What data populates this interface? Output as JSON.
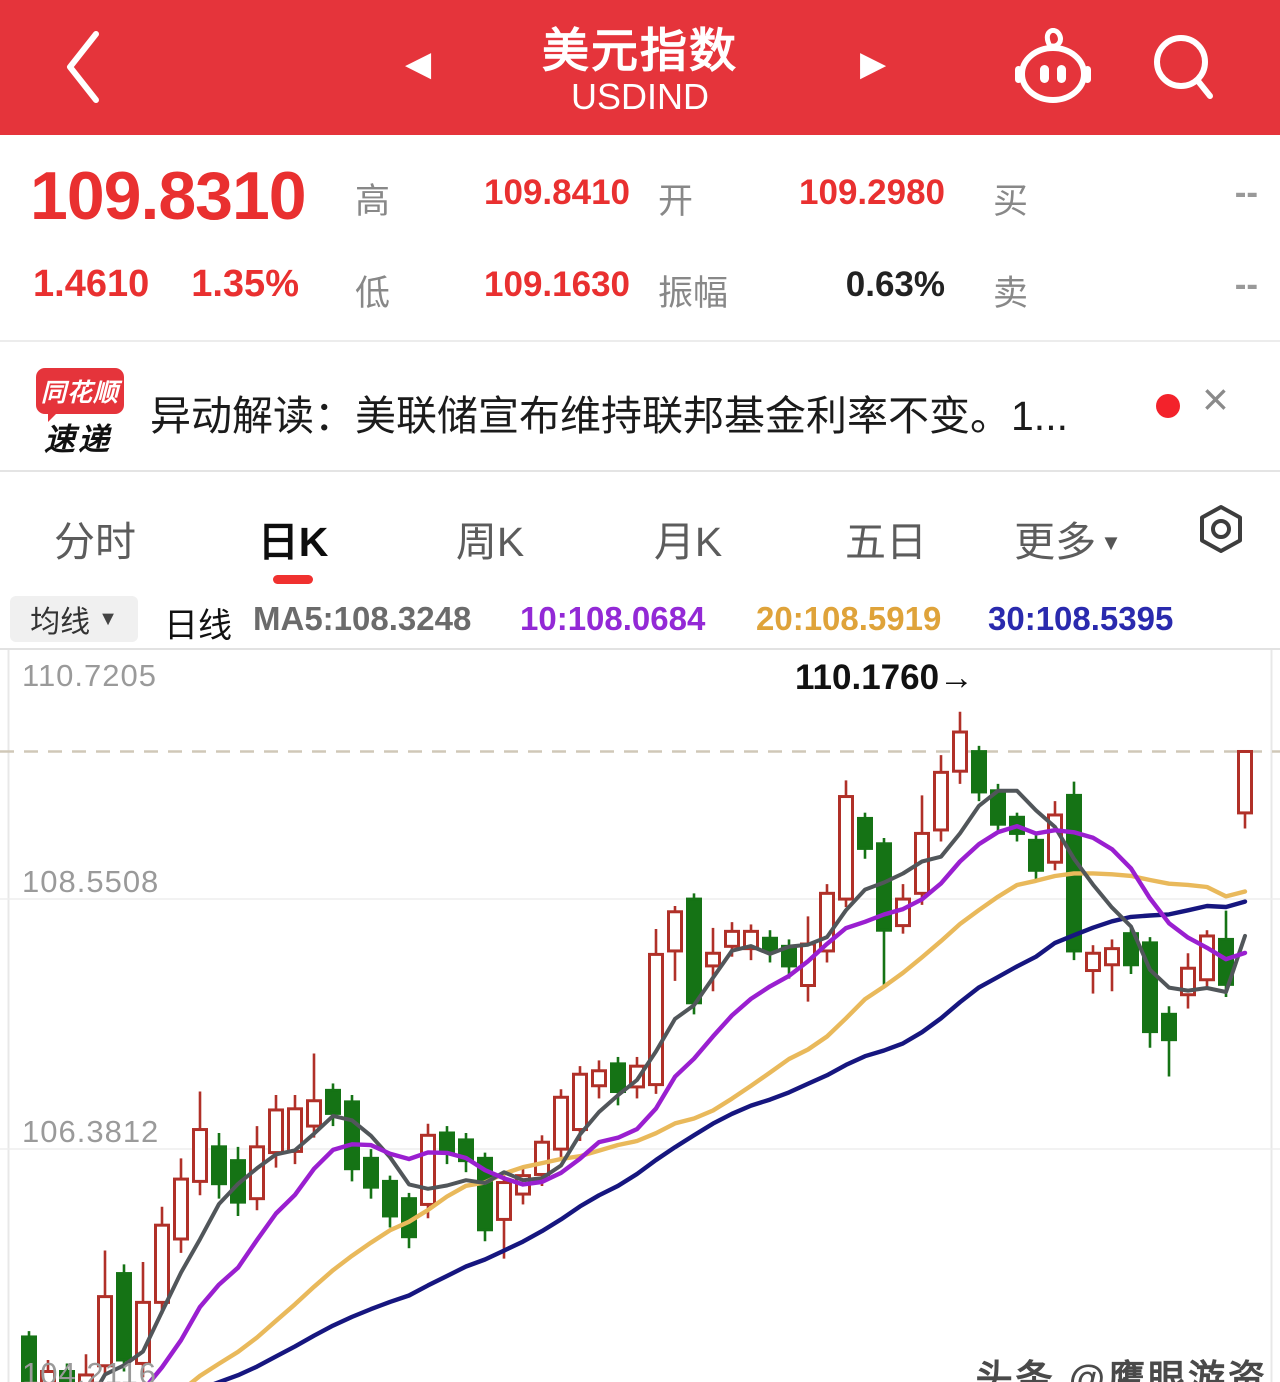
{
  "header": {
    "title": "美元指数",
    "subtitle": "USDIND",
    "bg_color": "#e5343b"
  },
  "quote": {
    "price": "109.8310",
    "change": "1.4610",
    "change_pct": "1.35%",
    "fields": [
      {
        "label": "高",
        "value": "109.8410"
      },
      {
        "label": "开",
        "value": "109.2980"
      },
      {
        "label": "买",
        "value": "--"
      },
      {
        "label": "低",
        "value": "109.1630"
      },
      {
        "label": "振幅",
        "value": "0.63%"
      },
      {
        "label": "卖",
        "value": "--"
      }
    ]
  },
  "news": {
    "logo_line1": "同花顺",
    "logo_line2": "速递",
    "text": "异动解读：美联储宣布维持联邦基金利率不变。1...",
    "close_icon": "×"
  },
  "tabs": {
    "items": [
      "分时",
      "日K",
      "周K",
      "月K",
      "五日",
      "更多"
    ],
    "selected": "日K"
  },
  "ma_bar": {
    "dropdown": "均线",
    "period": "日线",
    "ma5": "MA5:108.3248",
    "ma10": "10:108.0684",
    "ma20": "20:108.5919",
    "ma30": "30:108.5395"
  },
  "watermark": "头条 @鹰眼游资",
  "chart_data": {
    "type": "candlestick",
    "title": "美元指数 USDIND 日K",
    "y_axis_labels": [
      "110.7205",
      "108.5508",
      "106.3812",
      "104.2116"
    ],
    "y_axis_values": [
      110.7205,
      108.5508,
      106.3812,
      104.2116
    ],
    "annotation": "110.1760→",
    "annotated_high": 110.176,
    "current_price_line": 109.831,
    "grid": "horizontal-only",
    "x_axis_visible": false,
    "ma_periods": [
      5,
      10,
      20,
      30
    ],
    "ma_last_values": {
      "ma5": 108.3248,
      "ma10": 108.0684,
      "ma20": 108.5919,
      "ma30": 108.5395
    },
    "colors": {
      "up": "#b03028",
      "down": "#157315",
      "ma5": "#51565a",
      "ma10": "#9a1fd0",
      "ma20": "#e9b95b",
      "ma30": "#16167f",
      "dashed_line": "#d0c8b8",
      "grid_line": "#ededed"
    },
    "candles_format": [
      "open",
      "close",
      "high",
      "low"
    ],
    "candles": [
      [
        104.75,
        104.15,
        104.8,
        103.95
      ],
      [
        104.15,
        104.45,
        104.55,
        104.02
      ],
      [
        104.45,
        104.0,
        104.52,
        103.88
      ],
      [
        104.05,
        104.42,
        104.6,
        103.95
      ],
      [
        104.5,
        105.1,
        105.5,
        104.42
      ],
      [
        105.3,
        104.55,
        105.38,
        104.45
      ],
      [
        104.52,
        105.05,
        105.4,
        104.4
      ],
      [
        105.05,
        105.72,
        105.88,
        104.95
      ],
      [
        105.6,
        106.12,
        106.3,
        105.48
      ],
      [
        106.1,
        106.55,
        106.88,
        105.98
      ],
      [
        106.4,
        106.08,
        106.52,
        105.95
      ],
      [
        106.28,
        105.92,
        106.4,
        105.8
      ],
      [
        105.95,
        106.4,
        106.58,
        105.85
      ],
      [
        106.35,
        106.72,
        106.85,
        106.22
      ],
      [
        106.36,
        106.73,
        106.85,
        106.25
      ],
      [
        106.58,
        106.8,
        107.21,
        106.48
      ],
      [
        106.89,
        106.69,
        106.95,
        106.58
      ],
      [
        106.79,
        106.21,
        106.85,
        106.1
      ],
      [
        106.3,
        106.05,
        106.38,
        105.95
      ],
      [
        106.1,
        105.8,
        106.15,
        105.7
      ],
      [
        105.95,
        105.62,
        106.0,
        105.52
      ],
      [
        105.9,
        106.5,
        106.6,
        105.78
      ],
      [
        106.52,
        106.35,
        106.58,
        106.25
      ],
      [
        106.46,
        106.28,
        106.52,
        106.18
      ],
      [
        106.3,
        105.68,
        106.35,
        105.58
      ],
      [
        105.77,
        106.09,
        106.15,
        105.43
      ],
      [
        105.99,
        106.15,
        106.22,
        105.9
      ],
      [
        106.16,
        106.44,
        106.5,
        106.06
      ],
      [
        106.38,
        106.83,
        106.9,
        106.28
      ],
      [
        106.55,
        107.03,
        107.1,
        106.45
      ],
      [
        106.93,
        107.06,
        107.15,
        106.82
      ],
      [
        107.12,
        106.88,
        107.18,
        106.76
      ],
      [
        106.92,
        107.1,
        107.18,
        106.82
      ],
      [
        106.94,
        108.07,
        108.29,
        106.86
      ],
      [
        108.1,
        108.44,
        108.49,
        107.84
      ],
      [
        108.55,
        107.65,
        108.6,
        107.55
      ],
      [
        107.97,
        108.08,
        108.3,
        107.75
      ],
      [
        108.14,
        108.27,
        108.35,
        108.05
      ],
      [
        108.12,
        108.27,
        108.33,
        108.02
      ],
      [
        108.21,
        108.1,
        108.28,
        108.0
      ],
      [
        108.14,
        107.97,
        108.2,
        107.86
      ],
      [
        107.8,
        108.16,
        108.4,
        107.66
      ],
      [
        108.1,
        108.6,
        108.68,
        108.0
      ],
      [
        108.55,
        109.44,
        109.58,
        108.48
      ],
      [
        109.25,
        108.99,
        109.3,
        108.9
      ],
      [
        109.03,
        108.28,
        109.08,
        107.8
      ],
      [
        108.32,
        108.55,
        108.68,
        108.25
      ],
      [
        108.6,
        109.12,
        109.45,
        108.5
      ],
      [
        109.15,
        109.65,
        109.8,
        109.05
      ],
      [
        109.66,
        110.0,
        110.176,
        109.55
      ],
      [
        109.83,
        109.48,
        109.88,
        109.4
      ],
      [
        109.49,
        109.2,
        109.55,
        109.12
      ],
      [
        109.26,
        109.12,
        109.3,
        109.05
      ],
      [
        109.06,
        108.8,
        109.12,
        108.72
      ],
      [
        108.87,
        109.28,
        109.4,
        108.8
      ],
      [
        109.45,
        108.1,
        109.57,
        108.02
      ],
      [
        107.93,
        108.08,
        108.15,
        107.73
      ],
      [
        107.98,
        108.12,
        108.2,
        107.75
      ],
      [
        108.25,
        107.98,
        108.3,
        107.9
      ],
      [
        108.17,
        107.4,
        108.22,
        107.26
      ],
      [
        107.55,
        107.33,
        107.62,
        107.01
      ],
      [
        107.72,
        107.95,
        108.08,
        107.6
      ],
      [
        107.85,
        108.23,
        108.28,
        107.78
      ],
      [
        108.2,
        107.81,
        108.45,
        107.7
      ],
      [
        109.298,
        109.831,
        109.841,
        109.163
      ]
    ]
  }
}
